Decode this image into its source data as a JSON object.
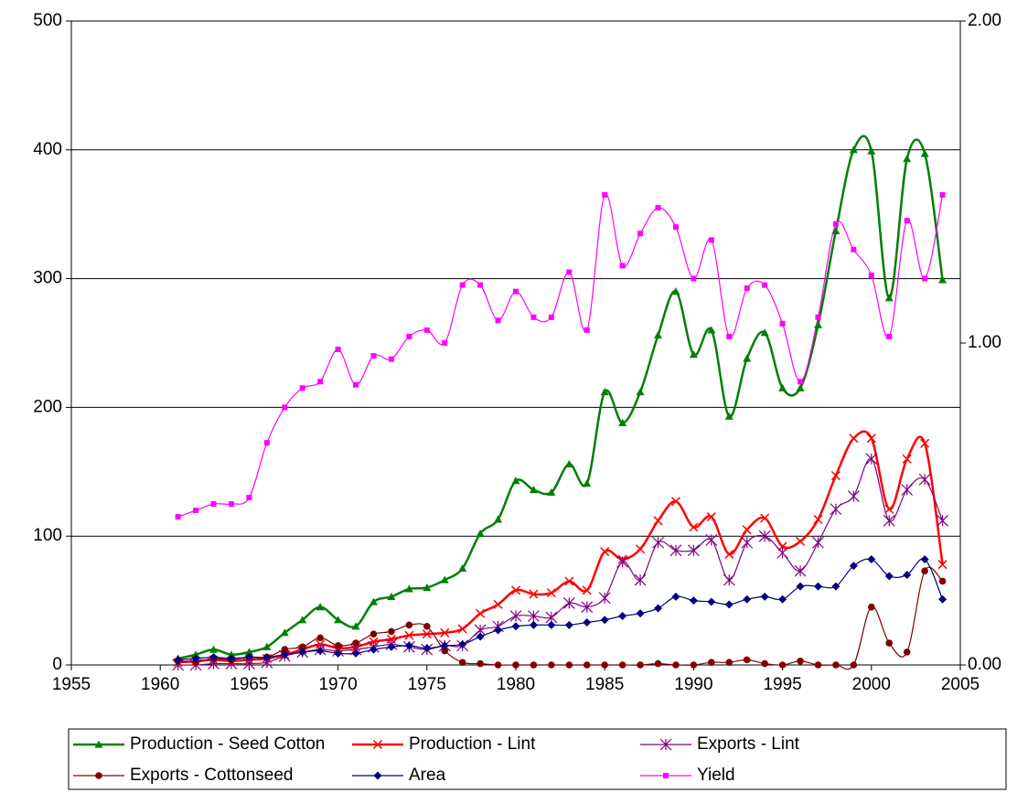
{
  "chart_data": {
    "type": "line",
    "x": [
      1961,
      1962,
      1963,
      1964,
      1965,
      1966,
      1967,
      1968,
      1969,
      1970,
      1971,
      1972,
      1973,
      1974,
      1975,
      1976,
      1977,
      1978,
      1979,
      1980,
      1981,
      1982,
      1983,
      1984,
      1985,
      1986,
      1987,
      1988,
      1989,
      1990,
      1991,
      1992,
      1993,
      1994,
      1995,
      1996,
      1997,
      1998,
      1999,
      2000,
      2001,
      2002,
      2003,
      2004
    ],
    "xlim": [
      1955,
      2005
    ],
    "xticks": [
      1955,
      1960,
      1965,
      1970,
      1975,
      1980,
      1985,
      1990,
      1995,
      2000,
      2005
    ],
    "ylim": [
      0,
      500
    ],
    "yticks": [
      0,
      100,
      200,
      300,
      400,
      500
    ],
    "y2lim": [
      0,
      2
    ],
    "y2ticks": [
      {
        "value": 0,
        "label": "0.00"
      },
      {
        "value": 1,
        "label": "1.00"
      },
      {
        "value": 2,
        "label": "2.00"
      }
    ],
    "grid": true,
    "smooth": true,
    "legend": "bottom",
    "series": [
      {
        "name": "Production - Seed Cotton",
        "color": "#008000",
        "marker": "triangle",
        "values": [
          5,
          8,
          12,
          8,
          10,
          14,
          25,
          35,
          45,
          35,
          30,
          49,
          53,
          59,
          60,
          66,
          75,
          102,
          113,
          143,
          136,
          134,
          156,
          141,
          212,
          188,
          212,
          256,
          290,
          241,
          260,
          193,
          238,
          258,
          215,
          215,
          264,
          337,
          400,
          399,
          285,
          393,
          397,
          299
        ]
      },
      {
        "name": "Production - Lint",
        "color": "#ff0000",
        "marker": "x",
        "values": [
          2,
          3,
          4,
          3,
          4,
          5,
          8,
          12,
          16,
          13,
          14,
          18,
          20,
          23,
          24,
          25,
          28,
          40,
          47,
          58,
          55,
          56,
          65,
          58,
          88,
          82,
          90,
          112,
          127,
          107,
          115,
          86,
          105,
          114,
          92,
          96,
          113,
          147,
          176,
          176,
          121,
          160,
          172,
          78
        ]
      },
      {
        "name": "Exports - Lint",
        "color": "#800080",
        "marker": "asterisk",
        "values": [
          0,
          0,
          1,
          1,
          1,
          2,
          7,
          10,
          12,
          11,
          12,
          14,
          16,
          14,
          12,
          15,
          15,
          27,
          30,
          38,
          38,
          37,
          48,
          45,
          52,
          80,
          66,
          95,
          89,
          89,
          97,
          66,
          95,
          100,
          87,
          73,
          95,
          121,
          131,
          160,
          112,
          136,
          144,
          112
        ]
      },
      {
        "name": "Exports - Cottonseed",
        "color": "#800000",
        "marker": "circle",
        "values": [
          3,
          2,
          5,
          4,
          6,
          6,
          12,
          14,
          21,
          15,
          17,
          24,
          26,
          31,
          30,
          11,
          2,
          1,
          0,
          0,
          0,
          0,
          0,
          0,
          0,
          0,
          0,
          1,
          0,
          0,
          2,
          2,
          4,
          1,
          0,
          3,
          0,
          0,
          0,
          45,
          17,
          10,
          73,
          65
        ]
      },
      {
        "name": "Area",
        "color": "#000080",
        "marker": "diamond",
        "values": [
          4,
          5,
          6,
          5,
          6,
          6,
          8,
          10,
          11,
          9,
          9,
          12,
          14,
          15,
          13,
          15,
          16,
          22,
          27,
          30,
          31,
          31,
          31,
          33,
          35,
          38,
          40,
          44,
          53,
          50,
          49,
          47,
          51,
          53,
          51,
          61,
          61,
          61,
          77,
          82,
          69,
          70,
          82,
          51
        ]
      },
      {
        "name": "Yield",
        "color": "#ff00ff",
        "marker": "square",
        "axis": "y2",
        "values": [
          0.46,
          0.48,
          0.5,
          0.5,
          0.52,
          0.69,
          0.8,
          0.86,
          0.88,
          0.98,
          0.87,
          0.96,
          0.95,
          1.02,
          1.04,
          1.0,
          1.18,
          1.18,
          1.07,
          1.16,
          1.08,
          1.08,
          1.22,
          1.04,
          1.46,
          1.24,
          1.34,
          1.42,
          1.36,
          1.2,
          1.32,
          1.02,
          1.17,
          1.18,
          1.06,
          0.88,
          1.08,
          1.37,
          1.29,
          1.21,
          1.02,
          1.38,
          1.2,
          1.46
        ]
      }
    ]
  }
}
